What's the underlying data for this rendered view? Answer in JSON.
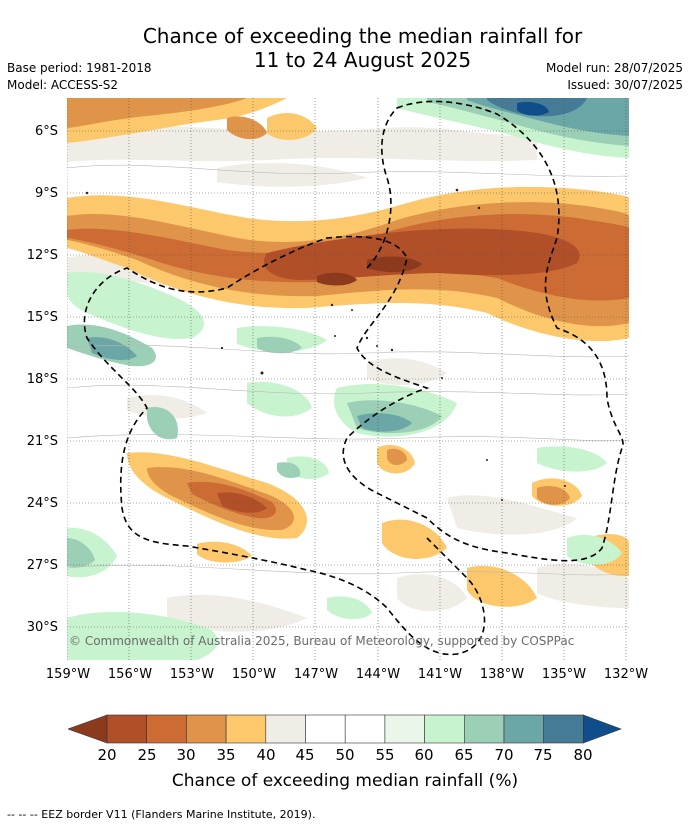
{
  "title_line1": "Chance of exceeding the median rainfall for",
  "title_line2": "11 to 24 August 2025",
  "base_period": "Base period: 1981-2018",
  "model": "Model: ACCESS-S2",
  "model_run": "Model run: 28/07/2025",
  "issued": "Issued: 30/07/2025",
  "copyright": "© Commonwealth of Australia 2025, Bureau of Meteorology, supported by COSPPac",
  "y_axis_labels": [
    "6°S",
    "9°S",
    "12°S",
    "15°S",
    "18°S",
    "21°S",
    "24°S",
    "27°S",
    "30°S"
  ],
  "x_axis_labels": [
    "159°W",
    "156°W",
    "153°W",
    "150°W",
    "147°W",
    "144°W",
    "141°W",
    "138°W",
    "135°W",
    "132°W"
  ],
  "colorbar": {
    "label": "Chance of exceeding median rainfall (%)",
    "ticks": [
      "20",
      "25",
      "30",
      "35",
      "40",
      "45",
      "50",
      "55",
      "60",
      "65",
      "70",
      "75",
      "80"
    ],
    "colors": [
      "#8c3a1e",
      "#b14f29",
      "#cd6b34",
      "#e0944a",
      "#fdc86b",
      "#f0ede6",
      "#ffffff",
      "#ffffff",
      "#e9f6e9",
      "#c8f3cf",
      "#9bcfb6",
      "#6aa7a6",
      "#457b96",
      "#104e8b"
    ]
  },
  "legend_note": "--  --  -- EEZ border V11 (Flanders Marine Institute, 2019)."
}
